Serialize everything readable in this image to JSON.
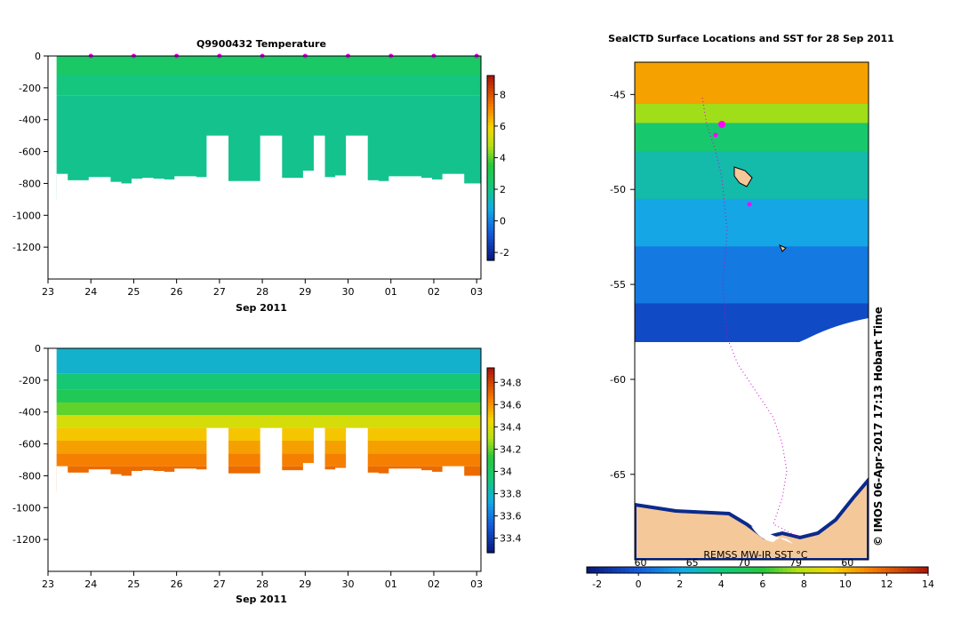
{
  "chart_data": [
    {
      "type": "heatmap",
      "title": "Q9900432  Temperature",
      "xlabel": "Sep 2011",
      "ylabel": "",
      "x_tick_labels": [
        "23",
        "24",
        "25",
        "26",
        "27",
        "28",
        "29",
        "30",
        "01",
        "02",
        "03"
      ],
      "y_tick_values": [
        0,
        -200,
        -400,
        -600,
        -800,
        -1000,
        -1200
      ],
      "y_tick_labels": [
        "0",
        "-200",
        "-400",
        "-600",
        "-800",
        "-1000",
        "-1200"
      ],
      "ylim": [
        -1400,
        0
      ],
      "xlim": [
        23,
        33.1
      ],
      "colorbar": {
        "min": -2.5,
        "max": 9.2,
        "tick_values": [
          -2,
          0,
          2,
          4,
          6,
          8
        ],
        "tick_labels": [
          "-2",
          "0",
          "2",
          "4",
          "6",
          "8"
        ]
      },
      "profiles": [
        {
          "t": 23.2,
          "depth": -740
        },
        {
          "t": 23.45,
          "depth": -780
        },
        {
          "t": 23.7,
          "depth": -780
        },
        {
          "t": 23.95,
          "depth": -760
        },
        {
          "t": 24.2,
          "depth": -760
        },
        {
          "t": 24.45,
          "depth": -790
        },
        {
          "t": 24.7,
          "depth": -800
        },
        {
          "t": 24.95,
          "depth": -770
        },
        {
          "t": 25.2,
          "depth": -765
        },
        {
          "t": 25.45,
          "depth": -770
        },
        {
          "t": 25.7,
          "depth": -775
        },
        {
          "t": 25.95,
          "depth": -755
        },
        {
          "t": 26.2,
          "depth": -755
        },
        {
          "t": 26.45,
          "depth": -760
        },
        {
          "t": 26.7,
          "depth": -500
        },
        {
          "t": 26.95,
          "depth": -500
        },
        {
          "t": 27.2,
          "depth": -785
        },
        {
          "t": 27.45,
          "depth": -785
        },
        {
          "t": 27.7,
          "depth": -785
        },
        {
          "t": 27.95,
          "depth": -500
        },
        {
          "t": 28.2,
          "depth": -500
        },
        {
          "t": 28.45,
          "depth": -765
        },
        {
          "t": 28.7,
          "depth": -765
        },
        {
          "t": 28.95,
          "depth": -720
        },
        {
          "t": 29.2,
          "depth": -500
        },
        {
          "t": 29.45,
          "depth": -760
        },
        {
          "t": 29.7,
          "depth": -750
        },
        {
          "t": 29.95,
          "depth": -500
        },
        {
          "t": 30.2,
          "depth": -500
        },
        {
          "t": 30.45,
          "depth": -780
        },
        {
          "t": 30.7,
          "depth": -785
        },
        {
          "t": 30.95,
          "depth": -755
        },
        {
          "t": 31.2,
          "depth": -755
        },
        {
          "t": 31.45,
          "depth": -755
        },
        {
          "t": 31.7,
          "depth": -765
        },
        {
          "t": 31.95,
          "depth": -775
        },
        {
          "t": 32.2,
          "depth": -740
        },
        {
          "t": 32.45,
          "depth": -740
        },
        {
          "t": 32.7,
          "depth": -800
        }
      ],
      "layers": [
        {
          "top": 0,
          "bottom": -120,
          "value": 2.6
        },
        {
          "top": -120,
          "bottom": -250,
          "value": 2.1
        },
        {
          "top": -250,
          "bottom": -900,
          "value": 1.9
        }
      ],
      "markers": [
        24,
        25,
        26,
        27,
        28,
        29,
        30,
        31,
        32,
        33
      ]
    },
    {
      "type": "heatmap",
      "title": "",
      "xlabel": "Sep 2011",
      "ylabel": "",
      "x_tick_labels": [
        "23",
        "24",
        "25",
        "26",
        "27",
        "28",
        "29",
        "30",
        "01",
        "02",
        "03"
      ],
      "y_tick_values": [
        0,
        -200,
        -400,
        -600,
        -800,
        -1000,
        -1200
      ],
      "y_tick_labels": [
        "0",
        "-200",
        "-400",
        "-600",
        "-800",
        "-1000",
        "-1200"
      ],
      "ylim": [
        -1400,
        0
      ],
      "xlim": [
        23,
        33.1
      ],
      "colorbar": {
        "min": 33.27,
        "max": 34.93,
        "tick_values": [
          33.4,
          33.6,
          33.8,
          34,
          34.2,
          34.4,
          34.6,
          34.8
        ],
        "tick_labels": [
          "33.4",
          "33.6",
          "33.8",
          "34",
          "34.2",
          "34.4",
          "34.6",
          "34.8"
        ]
      },
      "layers": [
        {
          "top": 0,
          "bottom": -160,
          "value": 33.78
        },
        {
          "top": -160,
          "bottom": -260,
          "value": 33.95
        },
        {
          "top": -260,
          "bottom": -340,
          "value": 34.05
        },
        {
          "top": -340,
          "bottom": -420,
          "value": 34.2
        },
        {
          "top": -420,
          "bottom": -500,
          "value": 34.38
        },
        {
          "top": -500,
          "bottom": -580,
          "value": 34.5
        },
        {
          "top": -580,
          "bottom": -660,
          "value": 34.58
        },
        {
          "top": -660,
          "bottom": -740,
          "value": 34.65
        },
        {
          "top": -740,
          "bottom": -900,
          "value": 34.7
        }
      ]
    },
    {
      "type": "heatmap",
      "title": "SealCTD Surface Locations and SST for 28 Sep 2011",
      "xlabel": "",
      "ylabel": "",
      "y_tick_values": [
        -45,
        -50,
        -55,
        -60,
        -65
      ],
      "y_tick_labels": [
        "-45",
        "-50",
        "-55",
        "-60",
        "-65"
      ],
      "ylim": [
        -69.5,
        -43.3
      ],
      "colorbar": {
        "min": -2.5,
        "max": 14,
        "tick_values": [
          -2,
          0,
          2,
          4,
          6,
          8,
          10,
          12,
          14
        ],
        "tick_labels": [
          "-2",
          "0",
          "2",
          "4",
          "6",
          "8",
          "10",
          "12",
          "14"
        ],
        "upper_tick_labels": [
          "60",
          "65",
          "70",
          "79",
          "60"
        ]
      },
      "sst_bands": [
        {
          "lat_top": -43.3,
          "lat_bottom": -45.5,
          "value": 10.5
        },
        {
          "lat_top": -45.5,
          "lat_bottom": -46.5,
          "value": 7.5
        },
        {
          "lat_top": -46.5,
          "lat_bottom": -48.0,
          "value": 4.5
        },
        {
          "lat_top": -48.0,
          "lat_bottom": -50.5,
          "value": 3.2
        },
        {
          "lat_top": -50.5,
          "lat_bottom": -53.0,
          "value": 2.0
        },
        {
          "lat_top": -53.0,
          "lat_bottom": -56.0,
          "value": 0.8
        },
        {
          "lat_top": -56.0,
          "lat_bottom": -58.8,
          "value": -0.6
        }
      ],
      "source_label": "REMSS MW-IR SST °C",
      "credit": "© IMOS 06-Apr-2017 17:13 Hobart Time"
    }
  ]
}
